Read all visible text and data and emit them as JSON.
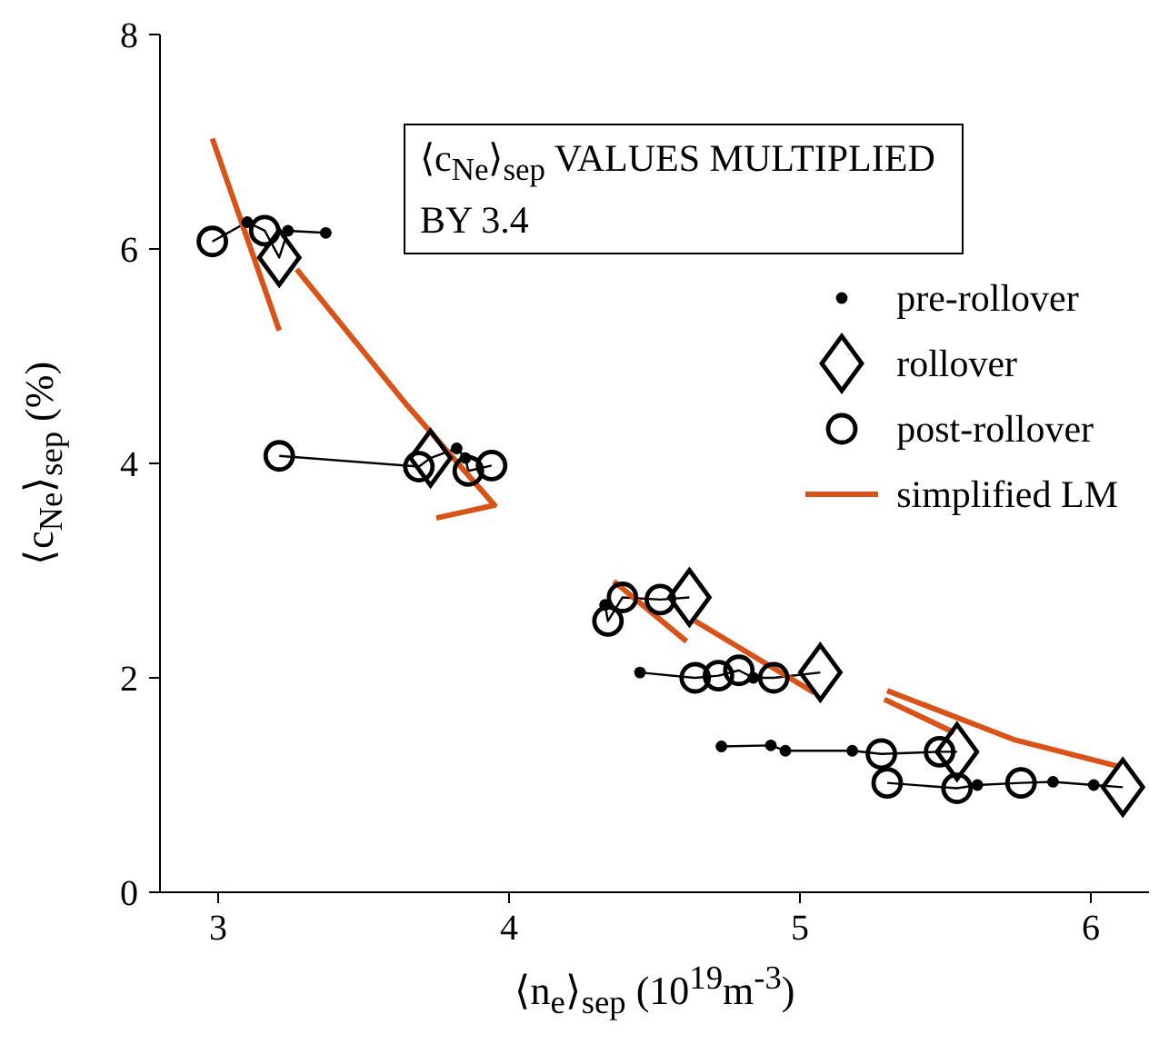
{
  "chart_data": {
    "type": "scatter",
    "xlabel": "⟨n$_{e}$⟩$_{sep}$ (10$^{19}$m$^{-3}$)",
    "ylabel": "⟨c$_{Ne}$⟩$_{sep}$ (%)",
    "xlim": [
      2.8,
      6.2
    ],
    "xticks": [
      3,
      4,
      5,
      6
    ],
    "ylim": [
      0,
      8
    ],
    "yticks": [
      0,
      2,
      4,
      6,
      8
    ],
    "grid": false,
    "legend": "top right",
    "annotations": [
      "⟨c$_{Ne}$⟩$_{sep}$ VALUES MULTIPLIED BY 3.4"
    ],
    "series": [
      {
        "name": "pre-rollover",
        "color": "#000000",
        "marker": "circle",
        "x": [
          3.1,
          3.24,
          3.37,
          3.82,
          3.85,
          4.33,
          4.45,
          4.84,
          4.73,
          4.9,
          4.95,
          5.18,
          5.61,
          5.87,
          6.01
        ],
        "values": [
          6.25,
          6.17,
          6.15,
          4.14,
          4.05,
          2.68,
          2.05,
          2.0,
          1.36,
          1.37,
          1.32,
          1.32,
          1.0,
          1.03,
          1.0
        ]
      },
      {
        "name": "rollover",
        "color": "#000000",
        "marker": "diamond",
        "x": [
          3.21,
          3.73,
          4.62,
          5.07,
          5.54,
          6.11
        ],
        "values": [
          5.92,
          4.05,
          2.75,
          2.05,
          1.31,
          0.98
        ]
      },
      {
        "name": "post-rollover",
        "color": "#000000",
        "marker": "circle",
        "x": [
          2.98,
          3.16,
          3.21,
          3.69,
          3.86,
          3.94,
          4.34,
          4.39,
          4.52,
          4.64,
          4.72,
          4.79,
          4.91,
          5.28,
          5.48,
          5.3,
          5.54,
          5.76
        ],
        "values": [
          6.07,
          6.17,
          4.07,
          3.97,
          3.93,
          3.98,
          2.53,
          2.75,
          2.73,
          2.0,
          2.02,
          2.07,
          2.0,
          1.29,
          1.31,
          1.02,
          0.97,
          1.02
        ]
      },
      {
        "type": "line",
        "color": "#000000",
        "x": [
          2.98,
          3.1,
          3.16,
          3.21,
          3.24,
          3.37
        ],
        "values": [
          6.07,
          6.25,
          6.17,
          5.92,
          6.17,
          6.15
        ]
      },
      {
        "type": "line",
        "color": "#000000",
        "x": [
          3.21,
          3.69,
          3.73,
          3.82,
          3.85,
          3.86,
          3.94
        ],
        "values": [
          4.07,
          3.97,
          4.05,
          4.14,
          4.05,
          3.93,
          3.98
        ]
      },
      {
        "type": "line",
        "color": "#000000",
        "x": [
          4.33,
          4.34,
          4.39,
          4.52,
          4.62
        ],
        "values": [
          2.68,
          2.53,
          2.75,
          2.73,
          2.75
        ]
      },
      {
        "type": "line",
        "color": "#000000",
        "x": [
          4.45,
          4.64,
          4.72,
          4.79,
          4.84,
          4.91,
          5.07
        ],
        "values": [
          2.05,
          2.0,
          2.02,
          2.07,
          2.0,
          2.0,
          2.05
        ]
      },
      {
        "type": "line",
        "color": "#000000",
        "x": [
          4.73,
          4.9,
          4.95,
          5.18,
          5.28,
          5.48,
          5.54
        ],
        "values": [
          1.36,
          1.37,
          1.32,
          1.32,
          1.29,
          1.31,
          1.31
        ]
      },
      {
        "type": "line",
        "color": "#000000",
        "x": [
          5.3,
          5.54,
          5.61,
          5.76,
          5.87,
          6.01,
          6.11
        ],
        "values": [
          1.02,
          0.97,
          1.0,
          1.02,
          1.03,
          1.0,
          0.98
        ]
      },
      {
        "name": "simplified LM",
        "type": "line",
        "color": "#d95319",
        "x": [
          2.98,
          3.21
        ],
        "values": [
          7.03,
          5.24
        ]
      },
      {
        "type": "line",
        "color": "#d95319",
        "x": [
          3.27,
          3.65,
          3.95,
          3.75
        ],
        "values": [
          5.81,
          4.54,
          3.61,
          3.49
        ]
      },
      {
        "type": "line",
        "color": "#d95319",
        "x": [
          4.36,
          4.61
        ],
        "values": [
          2.9,
          2.34
        ]
      },
      {
        "type": "line",
        "color": "#d95319",
        "x": [
          4.64,
          5.05
        ],
        "values": [
          2.53,
          1.86
        ]
      },
      {
        "type": "line",
        "color": "#d95319",
        "x": [
          5.29,
          5.53
        ],
        "values": [
          1.8,
          1.49
        ]
      },
      {
        "type": "line",
        "color": "#d95319",
        "x": [
          5.3,
          5.74,
          6.1
        ],
        "values": [
          1.88,
          1.42,
          1.17
        ]
      }
    ]
  }
}
